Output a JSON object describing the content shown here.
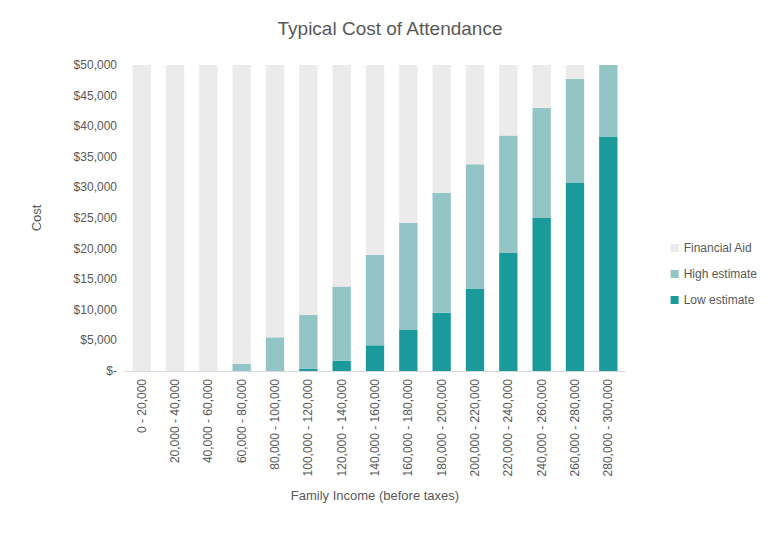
{
  "chart_data": {
    "type": "bar",
    "title": "Typical Cost of Attendance",
    "x_label": "Family Income (before taxes)",
    "y_label": "Cost",
    "categories": [
      "0 - 20,000",
      "20,000 - 40,000",
      "40,000 - 60,000",
      "60,000 - 80,000",
      "80,000 - 100,000",
      "100,000 - 120,000",
      "120,000 - 140,000",
      "140,000 - 160,000",
      "160,000 - 180,000",
      "180,000 - 200,000",
      "200,000 - 220,000",
      "220,000 - 240,000",
      "240,000 - 260,000",
      "260,000 - 280,000",
      "280,000 - 300,000"
    ],
    "series": [
      {
        "name": "Low estimate",
        "color": "#1b9a9b",
        "values": [
          0,
          0,
          0,
          0,
          0,
          400,
          1700,
          4200,
          6700,
          9500,
          13500,
          19300,
          25000,
          30700,
          38300
        ]
      },
      {
        "name": "High estimate",
        "color": "#93c4c6",
        "values": [
          0,
          0,
          0,
          1200,
          5500,
          8800,
          12100,
          14800,
          17500,
          19600,
          20300,
          19200,
          18000,
          17000,
          11700
        ]
      },
      {
        "name": "Financial Aid",
        "color": "#ebebeb",
        "values": [
          50000,
          50000,
          50000,
          48800,
          44500,
          40800,
          36200,
          31000,
          25800,
          20900,
          16200,
          11500,
          7000,
          2300,
          0
        ]
      }
    ],
    "stacked": true,
    "ylim": [
      0,
      50000
    ],
    "yticks": [
      {
        "value": 0,
        "label": "$-"
      },
      {
        "value": 5000,
        "label": "$5,000"
      },
      {
        "value": 10000,
        "label": "$10,000"
      },
      {
        "value": 15000,
        "label": "$15,000"
      },
      {
        "value": 20000,
        "label": "$20,000"
      },
      {
        "value": 25000,
        "label": "$25,000"
      },
      {
        "value": 30000,
        "label": "$30,000"
      },
      {
        "value": 35000,
        "label": "$35,000"
      },
      {
        "value": 40000,
        "label": "$40,000"
      },
      {
        "value": 45000,
        "label": "$45,000"
      },
      {
        "value": 50000,
        "label": "$50,000"
      }
    ],
    "grid": false,
    "legend": "right"
  }
}
